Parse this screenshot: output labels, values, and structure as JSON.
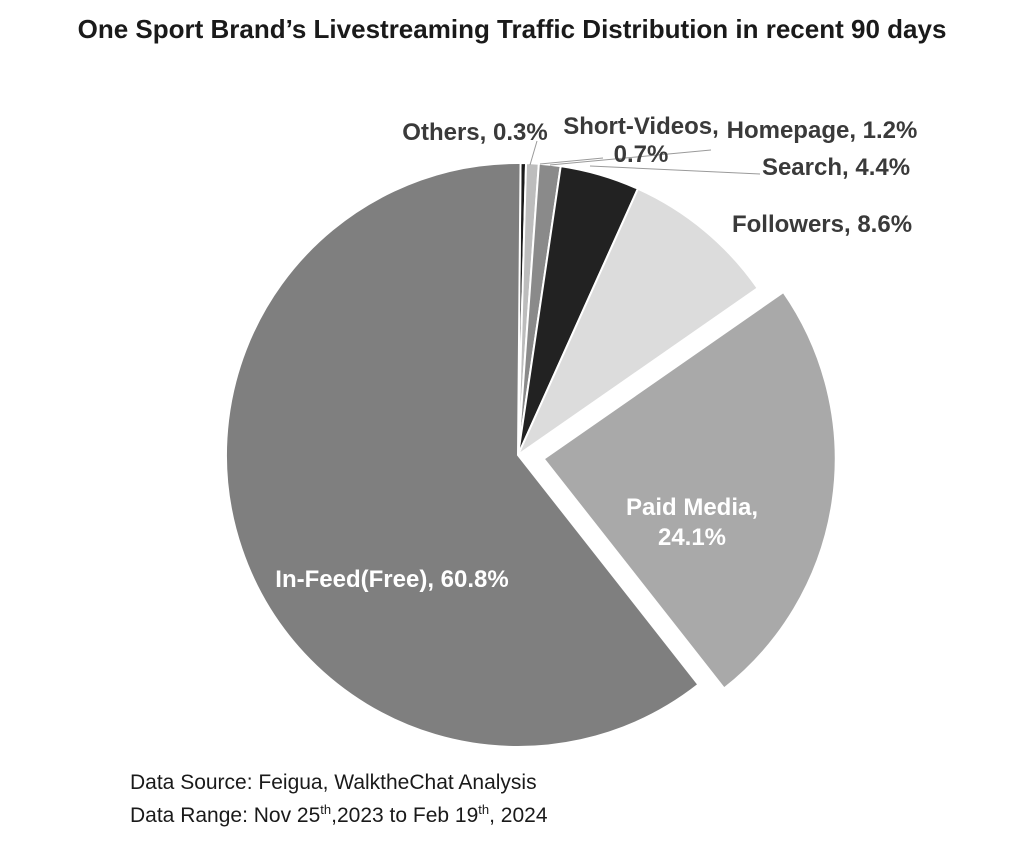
{
  "chart_data": {
    "type": "pie",
    "title": "One Sport Brand’s Livestreaming Traffic Distribution in recent 90 days",
    "slices": [
      {
        "name": "Others",
        "value": 0.3,
        "label": "Others, 0.3%",
        "color": "#1a1a1a"
      },
      {
        "name": "Short-Videos",
        "value": 0.7,
        "label_lines": [
          "Short-Videos,",
          "0.7%"
        ],
        "color": "#bdbdbd"
      },
      {
        "name": "Homepage",
        "value": 1.2,
        "label": "Homepage, 1.2%",
        "color": "#8a8a8a"
      },
      {
        "name": "Search",
        "value": 4.4,
        "label": "Search, 4.4%",
        "color": "#222222"
      },
      {
        "name": "Followers",
        "value": 8.6,
        "label": "Followers, 8.6%",
        "color": "#dcdcdc"
      },
      {
        "name": "Paid Media",
        "value": 24.1,
        "label_lines": [
          "Paid Media,",
          "24.1%"
        ],
        "color": "#a9a9a9",
        "exploded": true
      },
      {
        "name": "In-Feed(Free)",
        "value": 60.8,
        "label": "In-Feed(Free), 60.8%",
        "color": "#7f7f7f"
      }
    ],
    "legend": "none"
  },
  "footnote": {
    "source": "Data Source: Feigua, WalktheChat Analysis",
    "range_prefix": "Data Range: Nov 25",
    "range_sup1": "th",
    "range_middle": ",2023 to Feb 19",
    "range_sup2": "th",
    "range_suffix": ", 2024"
  }
}
